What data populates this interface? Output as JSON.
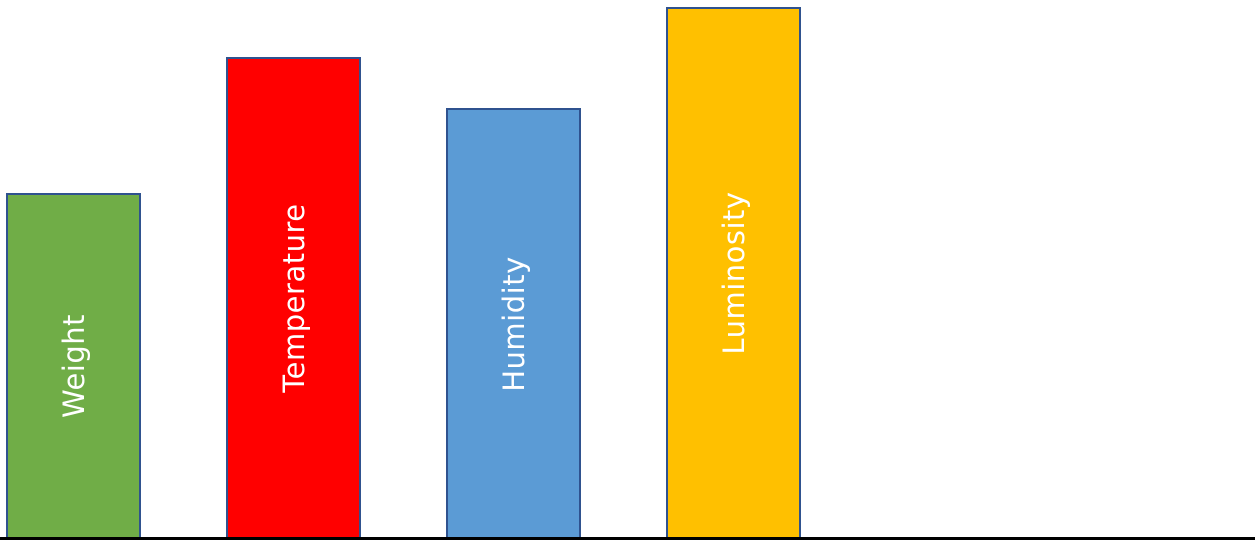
{
  "bars": [
    {
      "label": "Weight",
      "level": 0.649,
      "color": "#70ad47"
    },
    {
      "label": "Temperature",
      "level": 0.905,
      "color": "#ff0000"
    },
    {
      "label": "Humidity",
      "level": 0.81,
      "color": "#5b9bd5"
    },
    {
      "label": "Luminosity",
      "level": 1.0,
      "color": "#ffc000"
    }
  ]
}
